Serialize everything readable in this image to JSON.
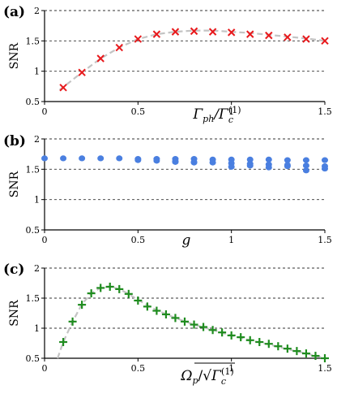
{
  "chart_data": [
    {
      "type": "scatter",
      "panel_label": "(a)",
      "ylabel": "SNR",
      "xlabel": "Γph/Γc(1)",
      "xlabel_main": "Γ",
      "xlabel_sub1": "ph",
      "xlabel_den": "/Γ",
      "xlabel_den_sub": "c",
      "xlabel_den_sup": "(1)",
      "xlim": [
        0,
        1.5
      ],
      "ylim": [
        0.5,
        2
      ],
      "xticks": [
        "0",
        "0.5",
        "1",
        "1.5"
      ],
      "yticks": [
        "0.5",
        "1",
        "1.5",
        "2"
      ],
      "marker": "x",
      "marker_color": "#e8191c",
      "fit_color": "#c4c4c4",
      "series": [
        {
          "marker": "x",
          "x": [
            0.1,
            0.2,
            0.3,
            0.4,
            0.5,
            0.6,
            0.7,
            0.8,
            0.9,
            1.0,
            1.1,
            1.2,
            1.3,
            1.4,
            1.5
          ],
          "y": [
            0.73,
            0.98,
            1.21,
            1.39,
            1.53,
            1.61,
            1.65,
            1.66,
            1.65,
            1.64,
            1.61,
            1.59,
            1.56,
            1.53,
            1.5
          ]
        }
      ],
      "fit": {
        "x": [
          0.08,
          0.2,
          0.3,
          0.4,
          0.5,
          0.6,
          0.7,
          0.8,
          0.9,
          1.0,
          1.1,
          1.2,
          1.3,
          1.4,
          1.5
        ],
        "y": [
          0.69,
          0.98,
          1.21,
          1.39,
          1.53,
          1.61,
          1.65,
          1.67,
          1.67,
          1.65,
          1.63,
          1.6,
          1.57,
          1.54,
          1.5
        ]
      },
      "grid": "horizontal dashed"
    },
    {
      "type": "scatter",
      "panel_label": "(b)",
      "ylabel": "SNR",
      "xlabel": "g",
      "xlim": [
        0,
        1.5
      ],
      "ylim": [
        0.5,
        2
      ],
      "xticks": [
        "0",
        "0.5",
        "1",
        "1.5"
      ],
      "yticks": [
        "0.5",
        "1",
        "1.5",
        "2"
      ],
      "marker": "o",
      "marker_color": "#4a7fe0",
      "series": [
        {
          "marker": "o",
          "x": [
            0.0,
            0.1,
            0.2,
            0.3,
            0.4,
            0.5,
            0.6,
            0.7,
            0.8,
            0.9,
            1.0,
            1.1,
            1.2,
            1.3,
            1.4,
            1.5
          ],
          "y": [
            1.68,
            1.68,
            1.68,
            1.68,
            1.68,
            1.67,
            1.67,
            1.67,
            1.67,
            1.66,
            1.66,
            1.66,
            1.66,
            1.65,
            1.65,
            1.65
          ]
        },
        {
          "marker": "o",
          "x": [
            0.5,
            0.6,
            0.7,
            0.8,
            0.9,
            1.0,
            1.1,
            1.2,
            1.3,
            1.4,
            1.5
          ],
          "y": [
            1.65,
            1.64,
            1.63,
            1.62,
            1.61,
            1.6,
            1.59,
            1.58,
            1.57,
            1.56,
            1.55
          ]
        },
        {
          "marker": "o",
          "x": [
            0.7,
            0.8,
            1.0,
            1.1,
            1.2,
            1.3,
            1.4,
            1.5
          ],
          "y": [
            1.62,
            1.61,
            1.54,
            1.56,
            1.53,
            1.55,
            1.48,
            1.51
          ]
        }
      ],
      "grid": "horizontal dashed"
    },
    {
      "type": "scatter",
      "panel_label": "(c)",
      "ylabel": "SNR",
      "xlabel": "Ωp/√Γc(1)",
      "xlabel_main": "Ω",
      "xlabel_sub1": "p",
      "xlabel_den": "/√",
      "xlabel_den_main": "Γ",
      "xlabel_den_sub": "c",
      "xlabel_den_sup": "(1)",
      "xlim": [
        0,
        1.5
      ],
      "ylim": [
        0.5,
        2
      ],
      "xticks": [
        "0",
        "0.5",
        "1",
        "1.5"
      ],
      "yticks": [
        "0.5",
        "1",
        "1.5",
        "2"
      ],
      "marker": "+",
      "marker_color": "#1f8c1f",
      "fit_color": "#c4c4c4",
      "series": [
        {
          "marker": "+",
          "x": [
            0.1,
            0.15,
            0.2,
            0.25,
            0.3,
            0.35,
            0.4,
            0.45,
            0.5,
            0.55,
            0.6,
            0.65,
            0.7,
            0.75,
            0.8,
            0.85,
            0.9,
            0.95,
            1.0,
            1.05,
            1.1,
            1.15,
            1.2,
            1.25,
            1.3,
            1.35,
            1.4,
            1.45,
            1.5
          ],
          "y": [
            0.77,
            1.11,
            1.39,
            1.58,
            1.67,
            1.69,
            1.65,
            1.57,
            1.46,
            1.36,
            1.29,
            1.23,
            1.17,
            1.11,
            1.06,
            1.02,
            0.97,
            0.93,
            0.88,
            0.85,
            0.8,
            0.77,
            0.74,
            0.7,
            0.66,
            0.62,
            0.58,
            0.54,
            0.5
          ]
        }
      ],
      "fit": {
        "x": [
          0.07,
          0.1,
          0.15,
          0.2,
          0.25,
          0.3,
          0.35,
          0.4,
          0.45,
          0.5,
          0.6,
          0.7,
          0.8,
          0.9,
          1.0,
          1.1,
          1.2,
          1.3,
          1.4,
          1.5
        ],
        "y": [
          0.5,
          0.77,
          1.11,
          1.4,
          1.58,
          1.67,
          1.69,
          1.65,
          1.57,
          1.47,
          1.3,
          1.17,
          1.06,
          0.97,
          0.88,
          0.8,
          0.73,
          0.65,
          0.58,
          0.5
        ]
      },
      "grid": "horizontal dashed"
    }
  ]
}
